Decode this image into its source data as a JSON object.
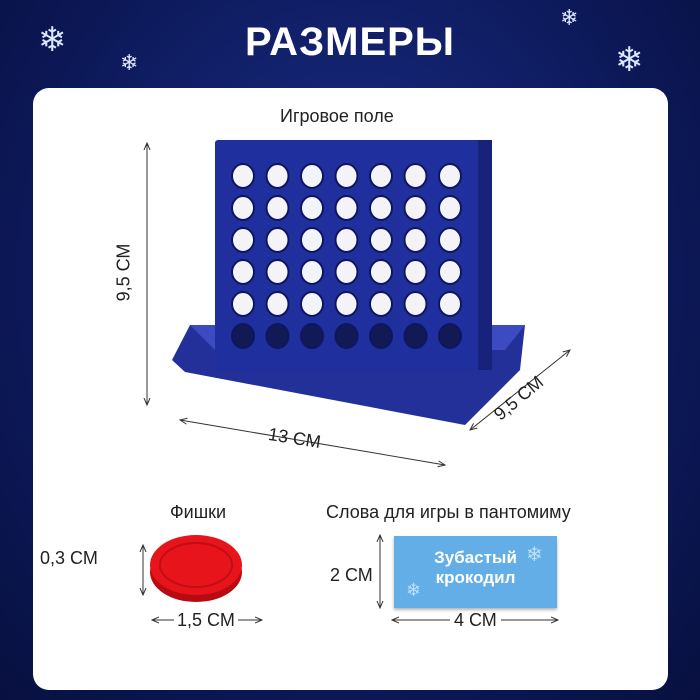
{
  "title": "РАЗМЕРЫ",
  "board": {
    "label": "Игровое поле",
    "height": "9,5 СМ",
    "width": "13 СМ",
    "depth": "9,5 СМ",
    "color": "#1f2f9e"
  },
  "chips": {
    "label": "Фишки",
    "height": "0,3 СМ",
    "diameter": "1,5 СМ",
    "color": "#e8141c"
  },
  "cards": {
    "label": "Слова для игры в пантомиму",
    "height": "2 СМ",
    "width": "4 СМ",
    "word_line1": "Зубастый",
    "word_line2": "крокодил",
    "color": "#63aee6"
  }
}
